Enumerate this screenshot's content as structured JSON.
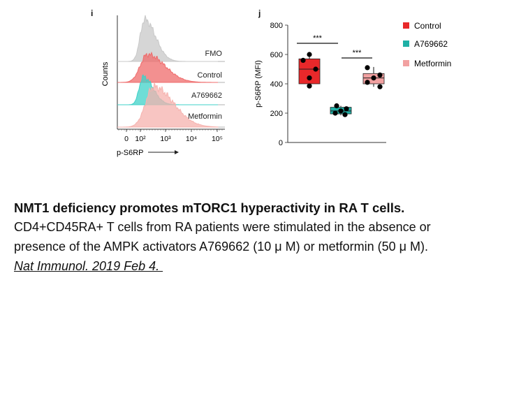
{
  "panel_i": {
    "label": "i",
    "ylabel": "Counts",
    "xlabel": "p-S6RP",
    "x_ticks": [
      "0",
      "10²",
      "10³",
      "10⁴",
      "10⁵"
    ],
    "tracks": [
      {
        "name": "FMO",
        "color": "#c8c8c8"
      },
      {
        "name": "Control",
        "color": "#ef6b6b"
      },
      {
        "name": "A769662",
        "color": "#3fd1c8"
      },
      {
        "name": "Metformin",
        "color": "#f6b2ae"
      }
    ]
  },
  "chart_data": {
    "type": "box",
    "label": "j",
    "ylabel": "p-S6RP (MFI)",
    "ylim": [
      0,
      800
    ],
    "y_ticks": [
      0,
      200,
      400,
      600,
      800
    ],
    "significance": [
      "***",
      "***"
    ],
    "legend_placement": "right",
    "series": [
      {
        "name": "Control",
        "color": "#e8282a",
        "points": [
          600,
          560,
          500,
          440,
          385
        ],
        "box": {
          "q1": 400,
          "median": 500,
          "q3": 570,
          "min": 380,
          "max": 600
        }
      },
      {
        "name": "A769662",
        "color": "#1fb0a6",
        "points": [
          250,
          230,
          215,
          200,
          190
        ],
        "box": {
          "q1": 195,
          "median": 215,
          "q3": 240,
          "min": 185,
          "max": 250
        }
      },
      {
        "name": "Metformin",
        "color": "#f2a1a1",
        "points": [
          510,
          460,
          440,
          410,
          380
        ],
        "box": {
          "q1": 400,
          "median": 440,
          "q3": 470,
          "min": 380,
          "max": 515
        }
      }
    ]
  },
  "caption": {
    "title": "NMT1 deficiency promotes mTORC1 hyperactivity in RA T cells.",
    "line1": "CD4+CD45RA+ T cells from RA patients were stimulated in the absence or",
    "line2": "presence of the AMPK activators A769662 (10 μ M) or metformin (50 μ M).",
    "reference": "Nat Immunol. 2019 Feb 4. "
  }
}
